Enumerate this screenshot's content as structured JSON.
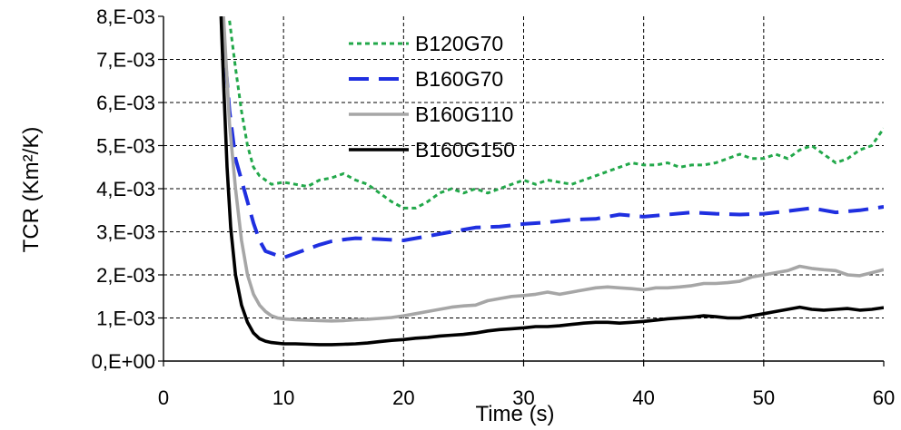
{
  "chart_data": {
    "type": "line",
    "xlabel": "Time (s)",
    "ylabel": "TCR (Km²/K)",
    "xlim": [
      0,
      60
    ],
    "ylim": [
      0,
      0.008
    ],
    "x_ticks": [
      0,
      10,
      20,
      30,
      40,
      50,
      60
    ],
    "x_tick_labels": [
      "0",
      "10",
      "20",
      "30",
      "40",
      "50",
      "60"
    ],
    "y_ticks": [
      0,
      0.001,
      0.002,
      0.003,
      0.004,
      0.005,
      0.006,
      0.007,
      0.008
    ],
    "y_tick_labels": [
      "0,E+00",
      "1,E-03",
      "2,E-03",
      "3,E-03",
      "4,E-03",
      "5,E-03",
      "6,E-03",
      "7,E-03",
      "8,E-03"
    ],
    "grid": "dashed",
    "legend_position": "top-left",
    "series": [
      {
        "name": "B120G70",
        "color": "#22a84a",
        "dash": "dotted",
        "x": [
          5.5,
          6,
          6.5,
          7,
          7.5,
          8,
          9,
          10,
          11,
          12,
          13,
          14,
          15,
          16,
          17,
          18,
          19,
          20,
          21,
          22,
          23,
          24,
          25,
          26,
          27,
          28,
          29,
          30,
          31,
          32,
          33,
          34,
          35,
          36,
          37,
          38,
          39,
          40,
          41,
          42,
          43,
          44,
          45,
          46,
          47,
          48,
          49,
          50,
          51,
          52,
          53,
          54,
          55,
          56,
          57,
          58,
          59,
          60
        ],
        "y": [
          0.0079,
          0.0068,
          0.0058,
          0.005,
          0.0045,
          0.0043,
          0.0041,
          0.00415,
          0.0041,
          0.00405,
          0.0042,
          0.00425,
          0.00435,
          0.0042,
          0.0041,
          0.0039,
          0.0037,
          0.00355,
          0.00355,
          0.0037,
          0.0039,
          0.004,
          0.0039,
          0.004,
          0.0039,
          0.004,
          0.0041,
          0.0042,
          0.0041,
          0.0042,
          0.00415,
          0.0041,
          0.0042,
          0.0043,
          0.0044,
          0.0045,
          0.0046,
          0.00455,
          0.00455,
          0.0046,
          0.0045,
          0.00455,
          0.00455,
          0.0046,
          0.0047,
          0.0048,
          0.0047,
          0.0047,
          0.0048,
          0.0047,
          0.0049,
          0.005,
          0.0048,
          0.0046,
          0.0047,
          0.0049,
          0.005,
          0.0054
        ]
      },
      {
        "name": "B160G70",
        "color": "#1f2fe0",
        "dash": "dashed",
        "x": [
          5.0,
          5.5,
          6,
          6.5,
          7,
          7.5,
          8,
          8.5,
          9,
          10,
          11,
          12,
          13,
          14,
          15,
          16,
          18,
          20,
          22,
          24,
          26,
          28,
          30,
          32,
          34,
          36,
          38,
          40,
          42,
          44,
          46,
          48,
          50,
          52,
          54,
          56,
          58,
          60
        ],
        "y": [
          0.0075,
          0.0058,
          0.0047,
          0.0042,
          0.0037,
          0.0032,
          0.0028,
          0.00255,
          0.0025,
          0.0024,
          0.0025,
          0.0026,
          0.0027,
          0.00278,
          0.00282,
          0.00285,
          0.00283,
          0.0028,
          0.0029,
          0.003,
          0.0031,
          0.00312,
          0.00318,
          0.00322,
          0.00328,
          0.0033,
          0.0034,
          0.00335,
          0.0034,
          0.00345,
          0.00342,
          0.0034,
          0.00342,
          0.00348,
          0.00355,
          0.00345,
          0.0035,
          0.00358
        ]
      },
      {
        "name": "B160G110",
        "color": "#a6a6a6",
        "dash": "solid",
        "x": [
          5.0,
          5.5,
          6,
          6.5,
          7,
          7.5,
          8,
          8.5,
          9,
          9.5,
          10,
          11,
          12,
          13,
          14,
          15,
          16,
          17,
          18,
          19,
          20,
          21,
          22,
          23,
          24,
          25,
          26,
          27,
          28,
          29,
          30,
          31,
          32,
          33,
          34,
          35,
          36,
          37,
          38,
          39,
          40,
          41,
          42,
          43,
          44,
          45,
          46,
          47,
          48,
          49,
          50,
          51,
          52,
          53,
          54,
          55,
          56,
          57,
          58,
          59,
          60
        ],
        "y": [
          0.008,
          0.0055,
          0.004,
          0.0028,
          0.002,
          0.00155,
          0.0013,
          0.00115,
          0.00105,
          0.001,
          0.00098,
          0.00096,
          0.00095,
          0.00094,
          0.00093,
          0.00094,
          0.00096,
          0.00097,
          0.00099,
          0.00101,
          0.00105,
          0.0011,
          0.00115,
          0.0012,
          0.00125,
          0.00128,
          0.0013,
          0.0014,
          0.00145,
          0.0015,
          0.00152,
          0.00155,
          0.0016,
          0.00155,
          0.0016,
          0.00165,
          0.0017,
          0.00172,
          0.0017,
          0.00168,
          0.00165,
          0.0017,
          0.0017,
          0.00172,
          0.00175,
          0.0018,
          0.0018,
          0.00182,
          0.00185,
          0.00195,
          0.002,
          0.00205,
          0.0021,
          0.0022,
          0.00215,
          0.00212,
          0.0021,
          0.002,
          0.00198,
          0.00205,
          0.00212
        ]
      },
      {
        "name": "B160G150",
        "color": "#000000",
        "dash": "solid",
        "x": [
          4.8,
          5.0,
          5.3,
          5.6,
          6,
          6.5,
          7,
          7.5,
          8,
          8.5,
          9,
          10,
          11,
          12,
          13,
          14,
          15,
          16,
          17,
          18,
          19,
          20,
          21,
          22,
          23,
          24,
          25,
          26,
          27,
          28,
          29,
          30,
          31,
          32,
          33,
          34,
          35,
          36,
          37,
          38,
          39,
          40,
          41,
          42,
          43,
          44,
          45,
          46,
          47,
          48,
          49,
          50,
          51,
          52,
          53,
          54,
          55,
          56,
          57,
          58,
          59,
          60
        ],
        "y": [
          0.008,
          0.0065,
          0.0045,
          0.0031,
          0.002,
          0.0013,
          0.0009,
          0.00065,
          0.00052,
          0.00046,
          0.00043,
          0.0004,
          0.0004,
          0.00039,
          0.00038,
          0.00038,
          0.00039,
          0.0004,
          0.00042,
          0.00045,
          0.00048,
          0.0005,
          0.00053,
          0.00055,
          0.00058,
          0.0006,
          0.00062,
          0.00065,
          0.0007,
          0.00073,
          0.00075,
          0.00077,
          0.0008,
          0.0008,
          0.00082,
          0.00085,
          0.00088,
          0.0009,
          0.0009,
          0.00088,
          0.0009,
          0.00092,
          0.00095,
          0.00098,
          0.001,
          0.00102,
          0.00105,
          0.00103,
          0.001,
          0.001,
          0.00105,
          0.0011,
          0.00115,
          0.0012,
          0.00125,
          0.0012,
          0.00118,
          0.0012,
          0.00122,
          0.00118,
          0.0012,
          0.00124
        ]
      }
    ]
  }
}
